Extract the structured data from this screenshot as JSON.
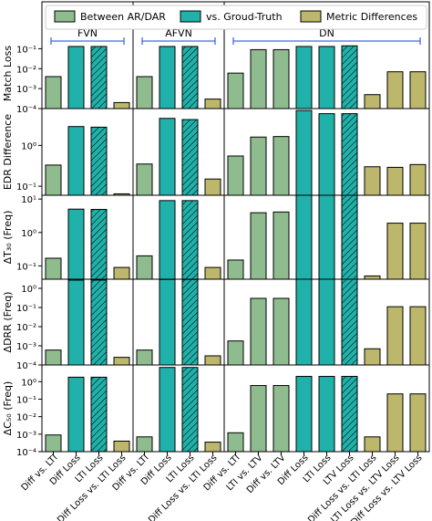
{
  "chart_data": {
    "type": "bar",
    "legend": {
      "placement": "top",
      "entries": [
        {
          "label": "Between AR/DAR",
          "color": "#8fbc8f"
        },
        {
          "label": "vs. Groud-Truth",
          "color": "#20b2aa"
        },
        {
          "label": "Metric Differences",
          "color": "#bdb76b"
        }
      ]
    },
    "colors": {
      "green": "#8fbc8f",
      "teal": "#20b2aa",
      "khaki": "#bdb76b",
      "bracket": "#4169e1"
    },
    "groups": [
      {
        "label": "FVN",
        "first": 0,
        "last": 3
      },
      {
        "label": "AFVN",
        "first": 4,
        "last": 7
      },
      {
        "label": "DN",
        "first": 8,
        "last": 16
      }
    ],
    "categories": [
      {
        "label": "Diff vs. LTI",
        "color": "green",
        "hatch": false
      },
      {
        "label": "Diff Loss",
        "color": "teal",
        "hatch": false
      },
      {
        "label": "LTI Loss",
        "color": "teal",
        "hatch": true
      },
      {
        "label": "Diff Loss vs. LTI Loss",
        "color": "khaki",
        "hatch": false
      },
      {
        "label": "Diff vs. LTI",
        "color": "green",
        "hatch": false
      },
      {
        "label": "Diff Loss",
        "color": "teal",
        "hatch": false
      },
      {
        "label": "LTI Loss",
        "color": "teal",
        "hatch": true
      },
      {
        "label": "Diff Loss vs. LTI Loss",
        "color": "khaki",
        "hatch": false
      },
      {
        "label": "Diff vs. LTI",
        "color": "green",
        "hatch": false
      },
      {
        "label": "LTI vs. LTV",
        "color": "green",
        "hatch": false
      },
      {
        "label": "Diff vs. LTV",
        "color": "green",
        "hatch": false
      },
      {
        "label": "Diff Loss",
        "color": "teal",
        "hatch": false
      },
      {
        "label": "LTI Loss",
        "color": "teal",
        "hatch": false
      },
      {
        "label": "LTV Loss",
        "color": "teal",
        "hatch": true
      },
      {
        "label": "Diff Loss vs. LTI Loss",
        "color": "khaki",
        "hatch": false
      },
      {
        "label": "LTI Loss vs. LTV Loss",
        "color": "khaki",
        "hatch": false
      },
      {
        "label": "Diff Loss vs. LTV Loss",
        "color": "khaki",
        "hatch": false
      }
    ],
    "panels": [
      {
        "ylabel": "Match Loss",
        "yscale": "log",
        "ylim": [
          0.0001,
          0.3
        ],
        "ticks": [
          {
            "value": 0.0001,
            "label": "10⁻⁴"
          },
          {
            "value": 0.001,
            "label": "10⁻³"
          },
          {
            "value": 0.01,
            "label": "10⁻²"
          },
          {
            "value": 0.1,
            "label": "10⁻¹"
          }
        ],
        "values": [
          0.004,
          0.13,
          0.13,
          0.0002,
          0.004,
          0.13,
          0.13,
          0.0003,
          0.006,
          0.09,
          0.09,
          0.13,
          0.13,
          0.14,
          0.0005,
          0.007,
          0.007
        ]
      },
      {
        "ylabel": "EDR Difference",
        "yscale": "log",
        "ylim": [
          0.06,
          8
        ],
        "ticks": [
          {
            "value": 0.1,
            "label": "10⁻¹"
          },
          {
            "value": 1,
            "label": "10⁰"
          }
        ],
        "values": [
          0.33,
          2.9,
          2.8,
          0.065,
          0.35,
          4.6,
          4.3,
          0.15,
          0.55,
          1.6,
          1.65,
          7.2,
          6.0,
          6.0,
          0.3,
          0.29,
          0.34
        ]
      },
      {
        "ylabel": "ΔT₃₀ (Freq)",
        "yscale": "log",
        "ylim": [
          0.04,
          13
        ],
        "ticks": [
          {
            "value": 0.1,
            "label": "10⁻¹"
          },
          {
            "value": 1,
            "label": "10⁰"
          },
          {
            "value": 10,
            "label": "10¹"
          }
        ],
        "values": [
          0.17,
          5.0,
          4.9,
          0.09,
          0.2,
          9.0,
          9.0,
          0.09,
          0.15,
          3.9,
          4.1,
          13.0,
          13.0,
          13.0,
          0.05,
          1.9,
          1.9
        ]
      },
      {
        "ylabel": "ΔDRR (Freq)",
        "yscale": "log",
        "ylim": [
          0.0001,
          3
        ],
        "ticks": [
          {
            "value": 0.0001,
            "label": "10⁻⁴"
          },
          {
            "value": 0.001,
            "label": "10⁻³"
          },
          {
            "value": 0.01,
            "label": "10⁻²"
          },
          {
            "value": 0.1,
            "label": "10⁻¹"
          },
          {
            "value": 1,
            "label": "10⁰"
          }
        ],
        "values": [
          0.0006,
          2.7,
          2.7,
          0.00025,
          0.0006,
          2.9,
          2.9,
          0.0003,
          0.0018,
          0.3,
          0.3,
          3.0,
          3.0,
          3.0,
          0.0007,
          0.11,
          0.11
        ]
      },
      {
        "ylabel": "ΔC₅₀ (Freq)",
        "yscale": "log",
        "ylim": [
          0.0001,
          9
        ],
        "ticks": [
          {
            "value": 0.0001,
            "label": "10⁻⁴"
          },
          {
            "value": 0.001,
            "label": "10⁻³"
          },
          {
            "value": 0.01,
            "label": "10⁻²"
          },
          {
            "value": 0.1,
            "label": "10⁻¹"
          },
          {
            "value": 1,
            "label": "10⁰"
          }
        ],
        "values": [
          0.0009,
          1.8,
          1.8,
          0.0004,
          0.0007,
          6.5,
          6.5,
          0.00035,
          0.0012,
          0.6,
          0.6,
          2.0,
          2.0,
          2.0,
          0.0007,
          0.2,
          0.2
        ]
      }
    ]
  }
}
